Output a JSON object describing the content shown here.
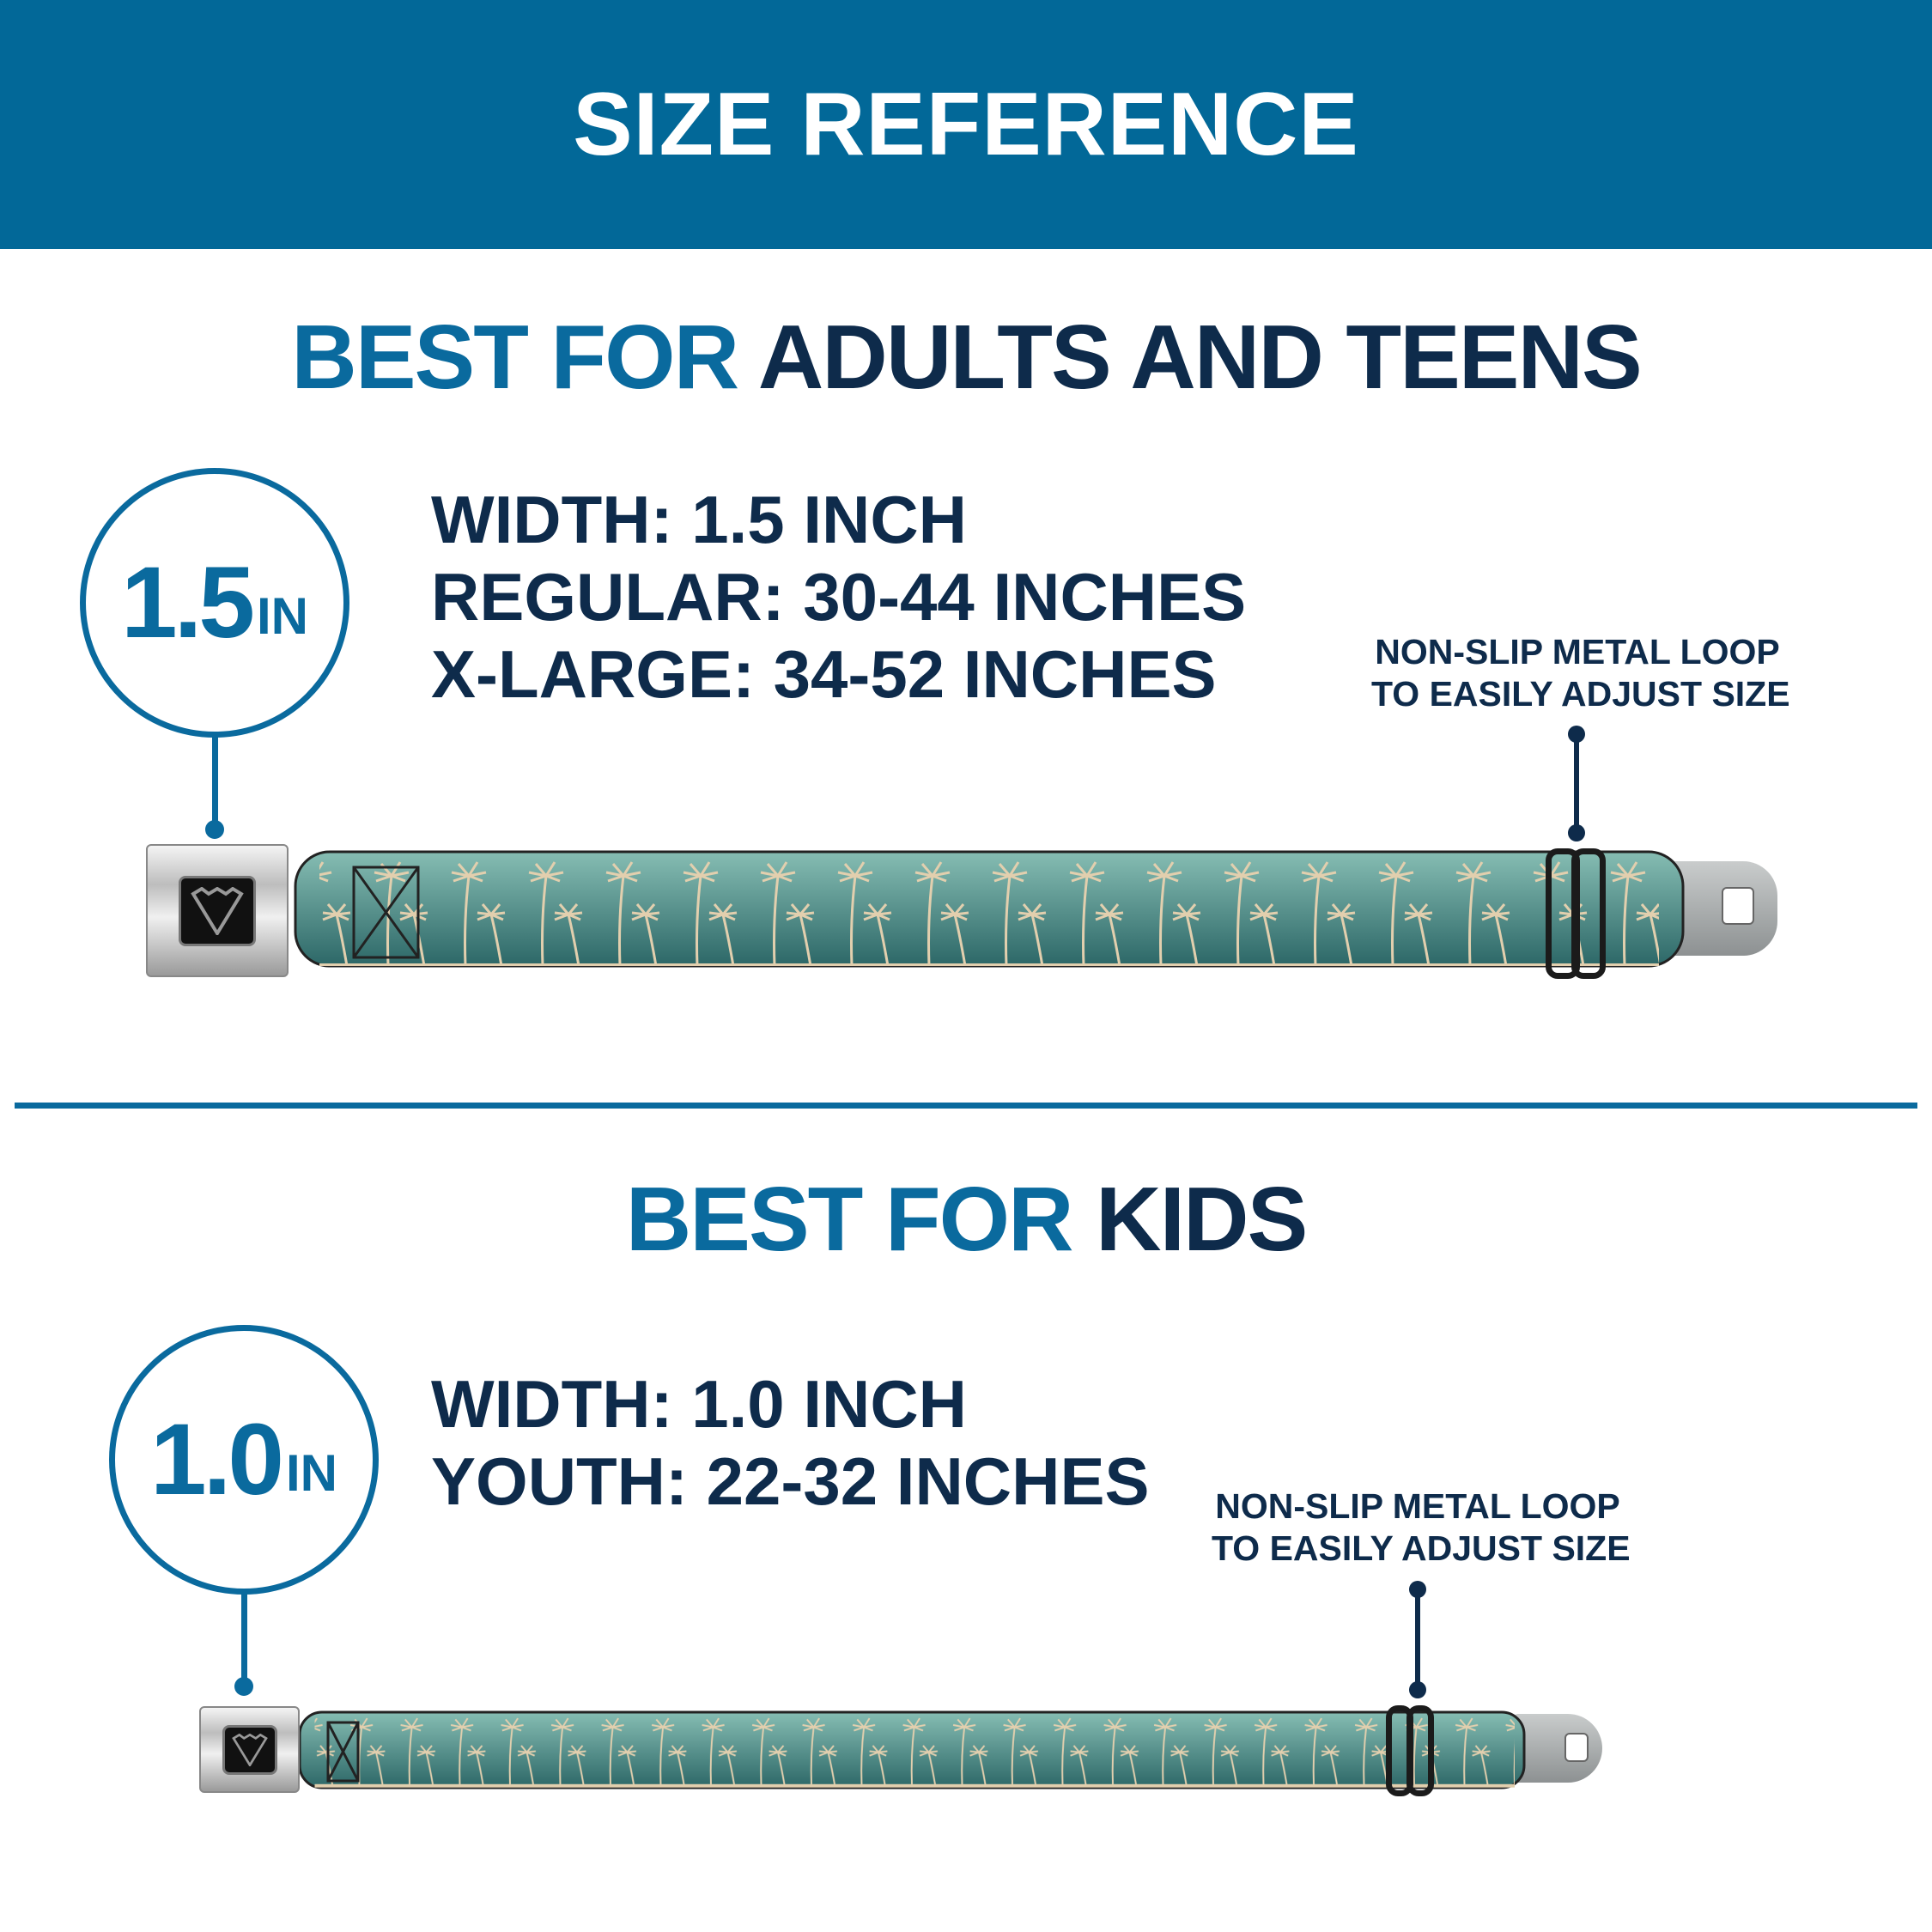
{
  "header": {
    "title": "SIZE REFERENCE"
  },
  "colors": {
    "brand_blue": "#026898",
    "accent_blue": "#0a6a9e",
    "navy": "#0e2b4b",
    "strap_top": "#86bdb3",
    "strap_bottom": "#2c6767",
    "palm": "#e2cfae"
  },
  "adults": {
    "heading_highlight": "BEST FOR",
    "heading_rest": "ADULTS AND TEENS",
    "badge_value": "1.5",
    "badge_unit": "IN",
    "specs": [
      "WIDTH: 1.5 INCH",
      "REGULAR: 30-44 INCHES",
      "X-LARGE: 34-52 INCHES"
    ],
    "note_lines": [
      "NON-SLIP METAL LOOP",
      "TO EASILY ADJUST SIZE"
    ],
    "buckle_logo": "BD"
  },
  "kids": {
    "heading_highlight": "BEST FOR",
    "heading_rest": "KIDS",
    "badge_value": "1.0",
    "badge_unit": "IN",
    "specs": [
      "WIDTH: 1.0 INCH",
      "YOUTH: 22-32 INCHES"
    ],
    "note_lines": [
      "NON-SLIP METAL LOOP",
      "TO EASILY ADJUST SIZE"
    ],
    "buckle_logo": "BD"
  }
}
